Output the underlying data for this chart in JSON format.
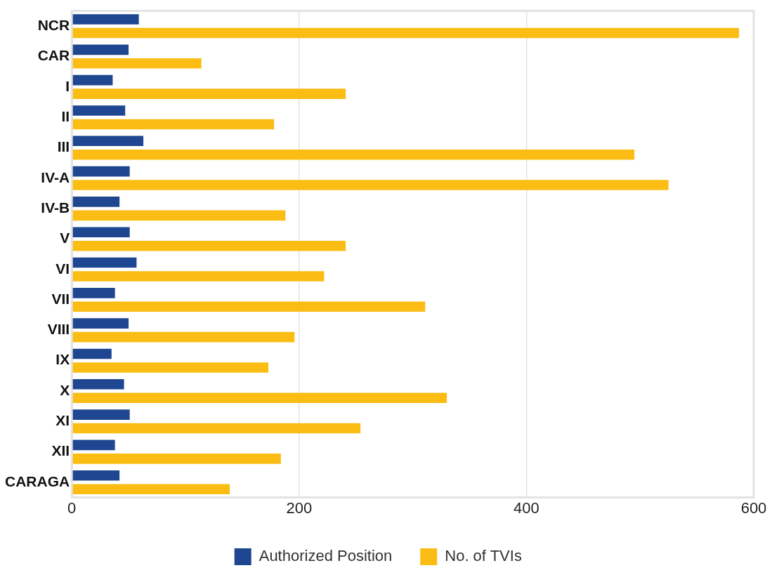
{
  "chart_data": {
    "type": "bar",
    "orientation": "horizontal",
    "categories": [
      "NCR",
      "CAR",
      "I",
      "II",
      "III",
      "IV-A",
      "IV-B",
      "V",
      "VI",
      "VII",
      "VIII",
      "IX",
      "X",
      "XI",
      "XII",
      "CARAGA"
    ],
    "series": [
      {
        "name": "Authorized Position",
        "color": "#1f4690",
        "values": [
          59,
          50,
          36,
          47,
          63,
          51,
          42,
          51,
          57,
          38,
          50,
          35,
          46,
          51,
          38,
          42
        ]
      },
      {
        "name": "No. of TVIs",
        "color": "#fbbd13",
        "values": [
          587,
          114,
          241,
          178,
          495,
          525,
          188,
          241,
          222,
          311,
          196,
          173,
          330,
          254,
          184,
          139
        ]
      }
    ],
    "xlim": [
      0,
      600
    ],
    "xticks": [
      0,
      200,
      400,
      600
    ],
    "grid": "x",
    "legend": "bottom"
  }
}
